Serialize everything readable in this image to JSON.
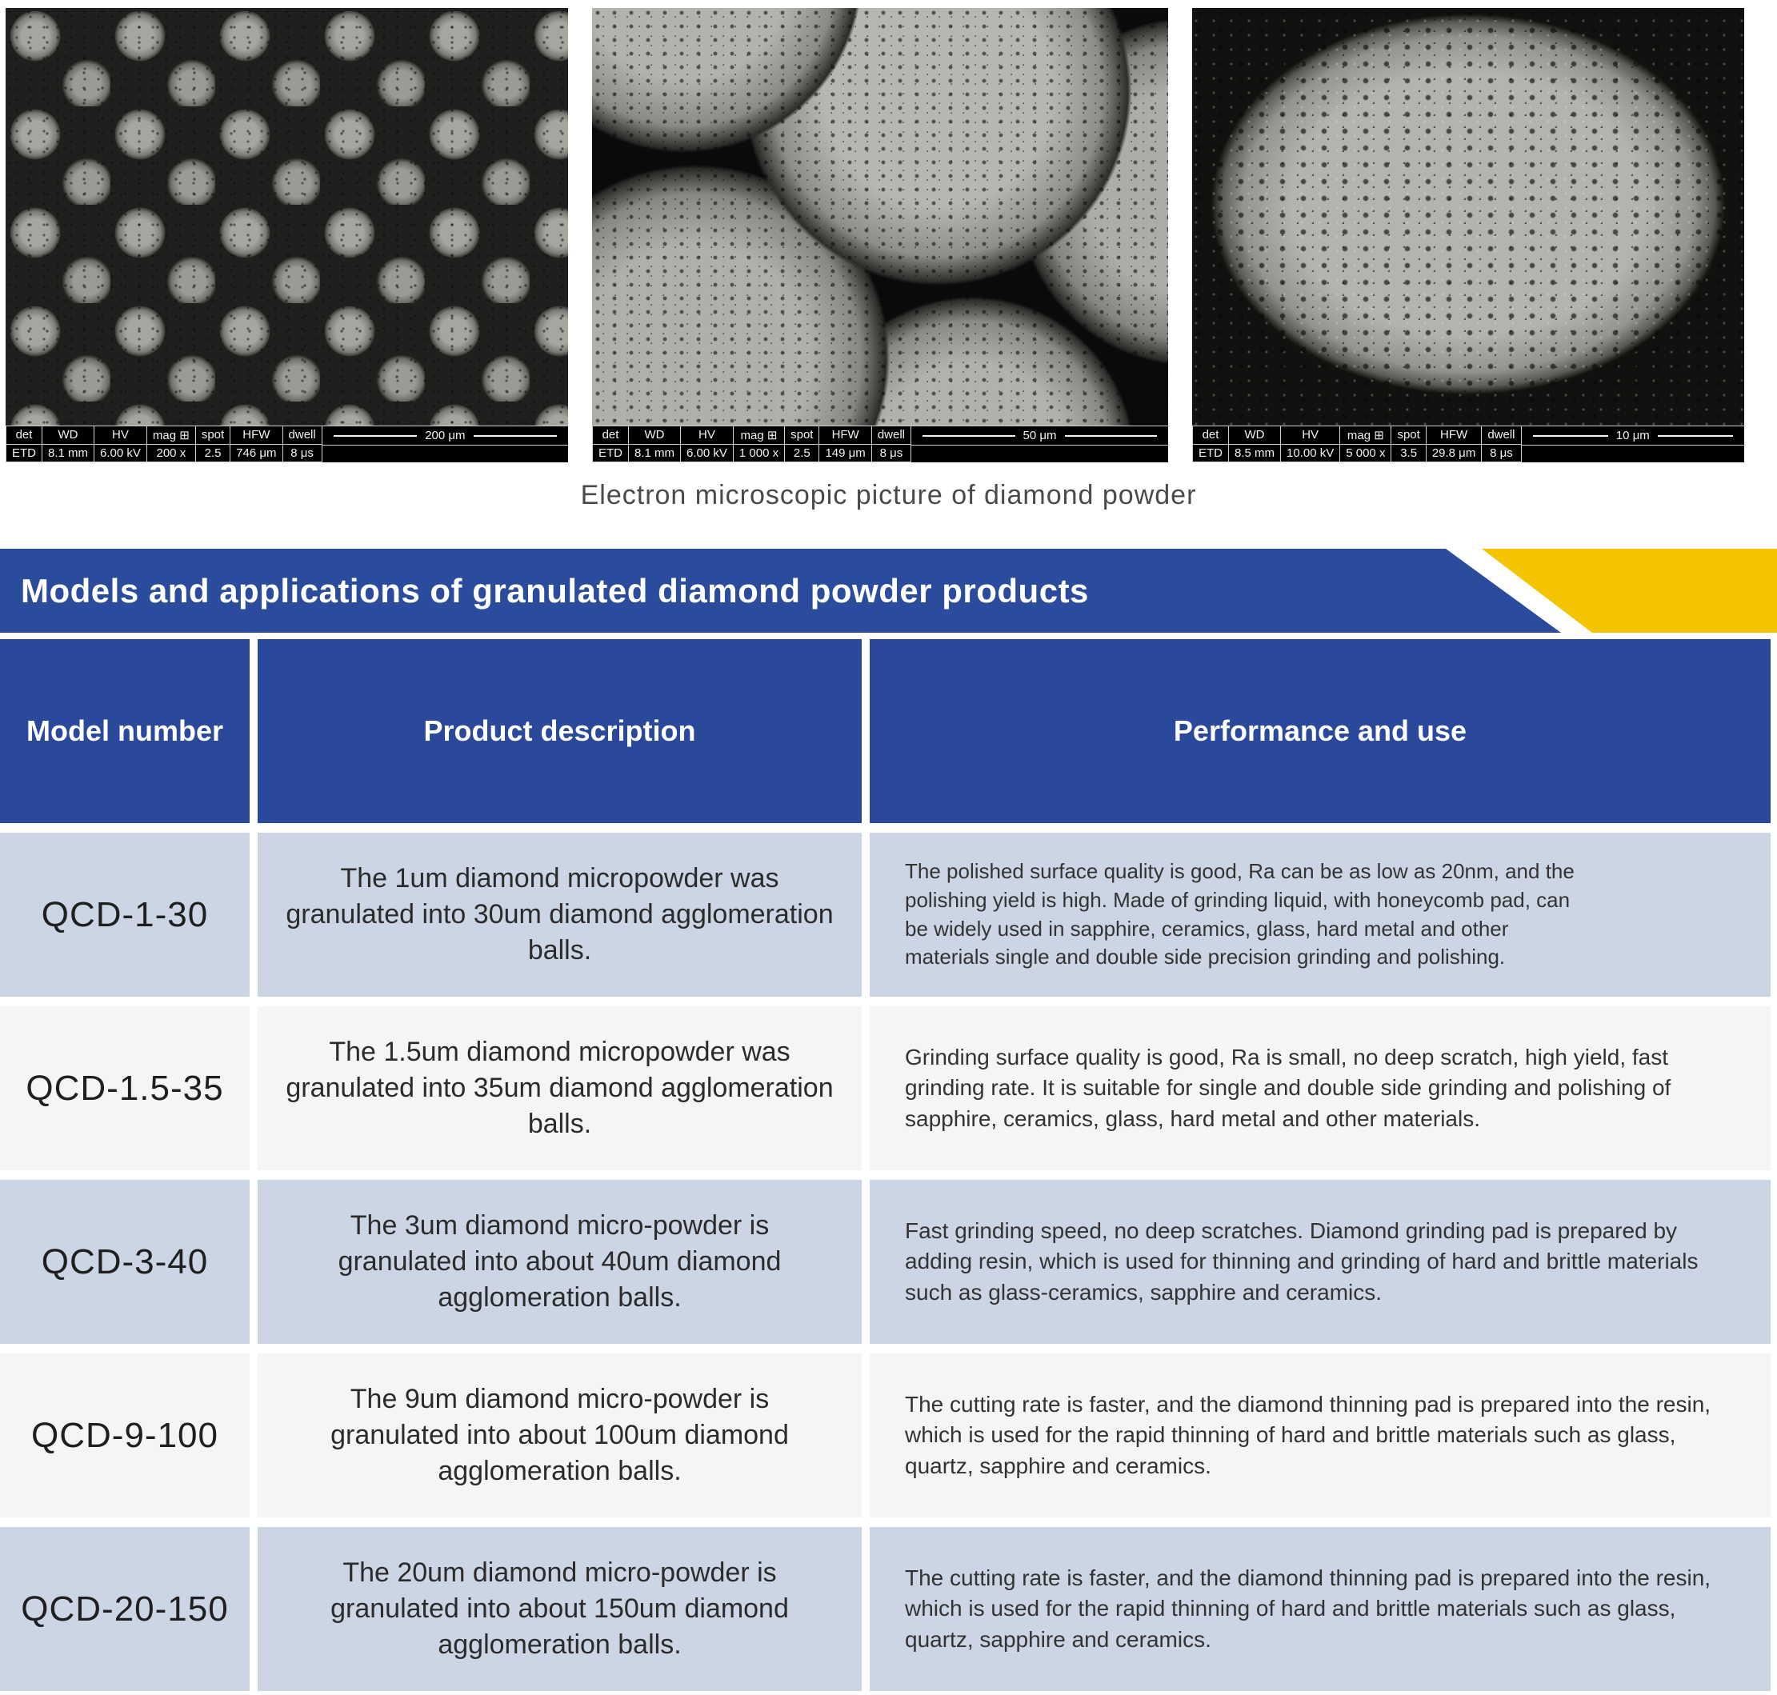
{
  "colors": {
    "banner_blue": "#2b4b9d",
    "header_blue": "#2a499b",
    "accent_yellow": "#f5c400",
    "row_light": "#ccd5e3",
    "row_white": "#f5f5f7"
  },
  "sem": {
    "caption": "Electron microscopic picture of diamond powder",
    "labels": {
      "det": "det",
      "wd": "WD",
      "hv": "HV",
      "mag": "mag ⊞",
      "spot": "spot",
      "hfw": "HFW",
      "dwell": "dwell"
    },
    "images": [
      {
        "det": "ETD",
        "wd": "8.1 mm",
        "hv": "6.00 kV",
        "mag": "200 x",
        "spot": "2.5",
        "hfw": "746 μm",
        "dwell": "8 μs",
        "scale": "200 μm"
      },
      {
        "det": "ETD",
        "wd": "8.1 mm",
        "hv": "6.00 kV",
        "mag": "1 000 x",
        "spot": "2.5",
        "hfw": "149 μm",
        "dwell": "8 μs",
        "scale": "50 μm"
      },
      {
        "det": "ETD",
        "wd": "8.5 mm",
        "hv": "10.00 kV",
        "mag": "5 000 x",
        "spot": "3.5",
        "hfw": "29.8 μm",
        "dwell": "8 μs",
        "scale": "10 μm"
      }
    ]
  },
  "banner": {
    "title": "Models and applications of granulated diamond powder products"
  },
  "table": {
    "headers": [
      "Model number",
      "Product description",
      "Performance and use"
    ],
    "rows": [
      {
        "model": "QCD-1-30",
        "description": "The 1um diamond micropowder was granulated into 30um diamond agglomeration balls.",
        "performance": "The polished surface quality is good, Ra can be as low as 20nm, and the polishing yield is high. Made of grinding liquid, with honeycomb pad, can be widely used in sapphire, ceramics, glass, hard metal and other materials single and double side precision grinding and polishing."
      },
      {
        "model": "QCD-1.5-35",
        "description": "The 1.5um diamond micropowder was granulated into 35um diamond agglomeration balls.",
        "performance": "Grinding surface quality is good, Ra is small, no deep scratch, high yield, fast grinding rate. It is suitable for single and double side grinding and polishing of sapphire, ceramics, glass, hard metal and other materials."
      },
      {
        "model": "QCD-3-40",
        "description": "The 3um diamond micro-powder is granulated into about 40um diamond agglomeration balls.",
        "performance": "Fast grinding speed, no deep scratches. Diamond grinding pad is prepared by adding resin, which is used for thinning and grinding of hard and brittle materials such as glass-ceramics, sapphire and ceramics."
      },
      {
        "model": "QCD-9-100",
        "description": "The 9um diamond micro-powder is granulated into about 100um diamond agglomeration balls.",
        "performance": "The cutting rate is faster, and the diamond thinning pad is prepared into the resin, which is used for the rapid thinning of hard and brittle materials such as glass, quartz, sapphire and ceramics."
      },
      {
        "model": "QCD-20-150",
        "description": "The 20um diamond micro-powder is granulated into about 150um diamond agglomeration balls.",
        "performance": "The cutting rate is faster, and the diamond thinning pad is prepared into the resin, which is used for the rapid thinning of hard and brittle materials such as glass, quartz, sapphire and ceramics."
      }
    ]
  }
}
